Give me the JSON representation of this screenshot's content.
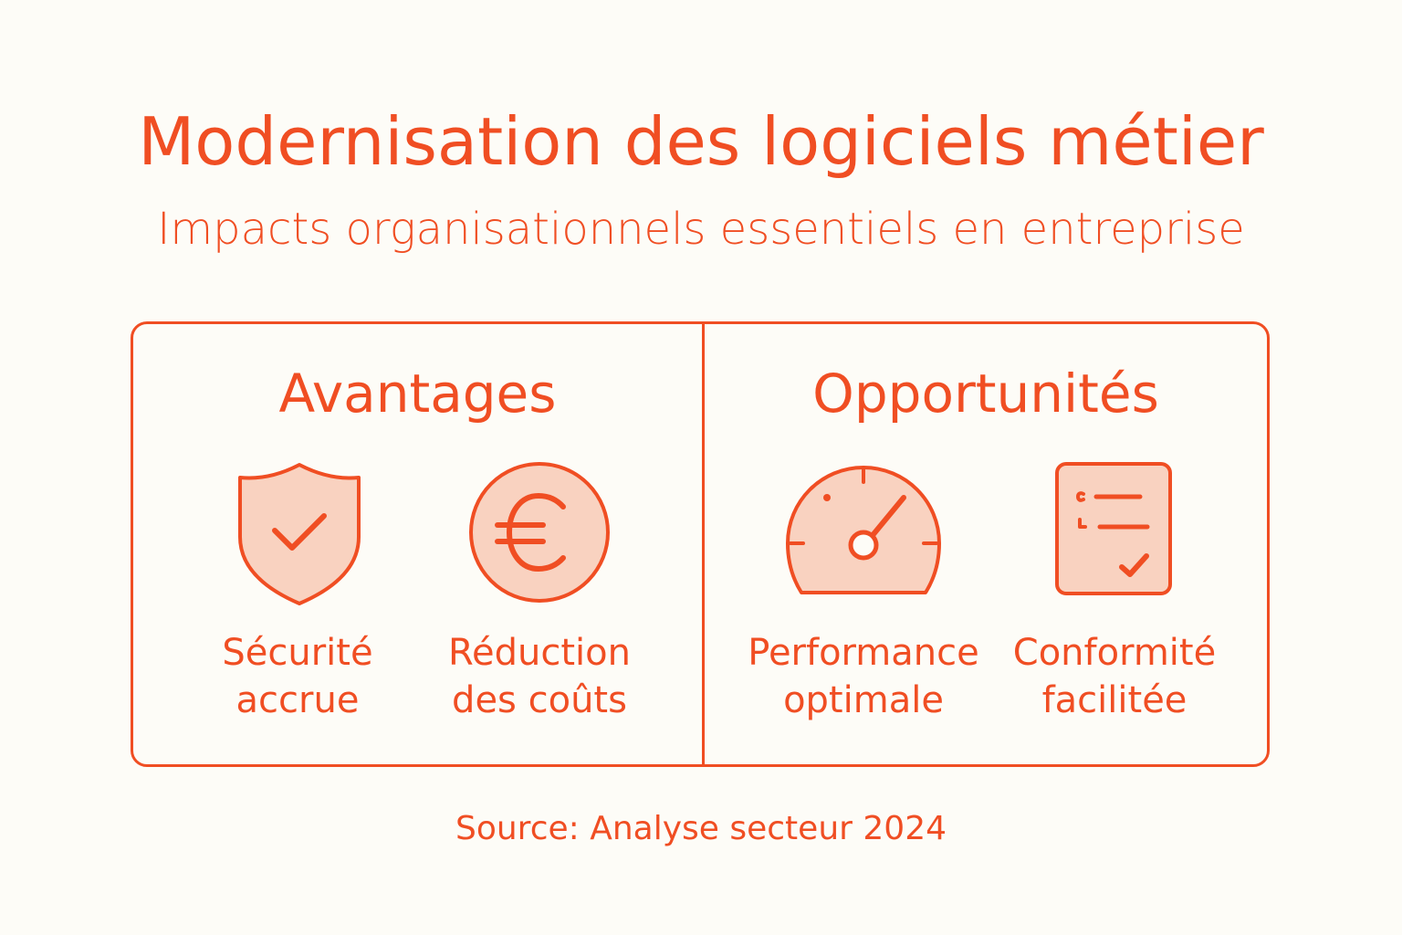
{
  "title": "Modernisation des logiciels métier",
  "subtitle": "Impacts organisationnels essentiels en entreprise",
  "sections": [
    {
      "title": "Avantages",
      "items": [
        {
          "icon": "shield-check-icon",
          "line1": "Sécurité",
          "line2": "accrue"
        },
        {
          "icon": "euro-icon",
          "line1": "Réduction",
          "line2": "des coûts"
        }
      ]
    },
    {
      "title": "Opportunités",
      "items": [
        {
          "icon": "speedometer-icon",
          "line1": "Performance",
          "line2": "optimale"
        },
        {
          "icon": "checklist-icon",
          "line1": "Conformité",
          "line2": "facilitée"
        }
      ]
    }
  ],
  "source": "Source: Analyse secteur 2024",
  "colors": {
    "accent": "#F04E23",
    "icon_fill": "#F9D2C0",
    "background": "#FDFCF7"
  }
}
